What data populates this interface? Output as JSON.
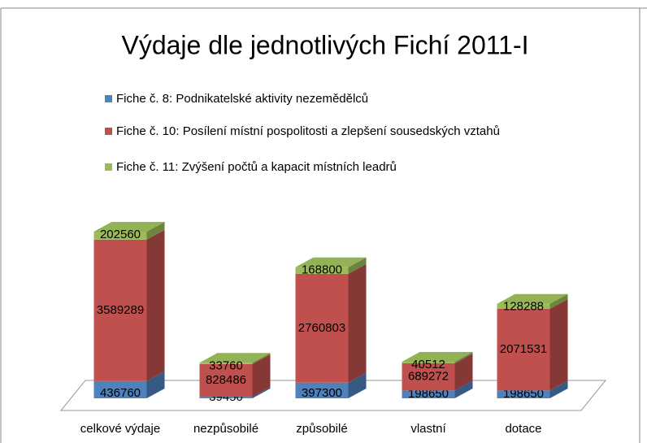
{
  "chart_data": {
    "type": "bar3d-stacked",
    "title": "Výdaje dle jednotlivých Fichí 2011-I",
    "categories": [
      "celkové výdaje",
      "nezpůsobilé",
      "způsobilé",
      "vlastní",
      "dotace"
    ],
    "series": [
      {
        "name": "Fiche č. 8: Podnikatelské aktivity nezemědělců",
        "color": "#4f81bd",
        "values": [
          436760,
          39450,
          397300,
          198650,
          198650
        ]
      },
      {
        "name": "Fiche č. 10: Posílení místní pospolitosti a zlepšení sousedských vztahů",
        "color": "#c0504d",
        "values": [
          3589289,
          828486,
          2760803,
          689272,
          2071531
        ]
      },
      {
        "name": "Fiche č. 11: Zvýšení počtů a kapacit místních leadrů",
        "color": "#9bbb59",
        "values": [
          202560,
          33760,
          168800,
          40512,
          128288
        ]
      }
    ],
    "legend": "top-left"
  }
}
